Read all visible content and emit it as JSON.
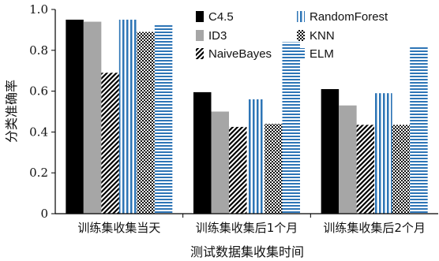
{
  "chart_data": {
    "type": "bar",
    "categories": [
      "训练集收集当天",
      "训练集收集后1个月",
      "训练集收集后2个月"
    ],
    "series": [
      {
        "name": "C4.5",
        "values": [
          0.95,
          0.595,
          0.61
        ],
        "color": "#000000",
        "pattern": "solid"
      },
      {
        "name": "ID3",
        "values": [
          0.94,
          0.5,
          0.53
        ],
        "color": "#a6a6a6",
        "pattern": "solid"
      },
      {
        "name": "NaiveBayes",
        "values": [
          0.69,
          0.425,
          0.435
        ],
        "color": "#000000",
        "pattern": "diagonal"
      },
      {
        "name": "RandomForest",
        "values": [
          0.95,
          0.56,
          0.59
        ],
        "color": "#2e75b6",
        "pattern": "vertical"
      },
      {
        "name": "KNN",
        "values": [
          0.89,
          0.44,
          0.435
        ],
        "color": "#000000",
        "pattern": "checker"
      },
      {
        "name": "ELM",
        "values": [
          0.93,
          0.84,
          0.82
        ],
        "color": "#2e75b6",
        "pattern": "horizontal"
      }
    ],
    "ylim": [
      0,
      1.0
    ],
    "yticks": [
      "0",
      "0.2",
      "0.4",
      "0.6",
      "0.8",
      "1.0"
    ],
    "ylabel": "分类准确率",
    "xlabel": "测试数据集收集时间",
    "legend": "top-center, two columns",
    "grid": false
  }
}
